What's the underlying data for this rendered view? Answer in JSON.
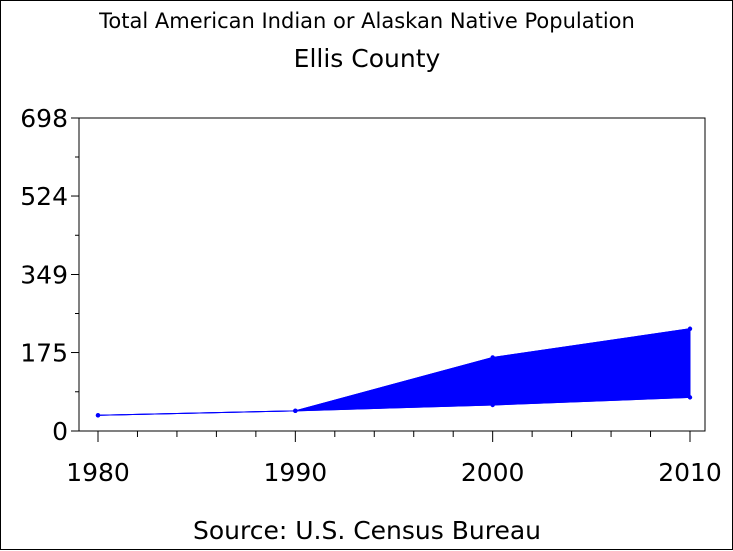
{
  "chart_data": {
    "type": "area",
    "title": "Total American Indian or Alaskan Native Population",
    "subtitle": "Ellis County",
    "source": "Source: U.S. Census Bureau",
    "x": [
      1980,
      1990,
      2000,
      2010
    ],
    "xlim": [
      1980,
      2010
    ],
    "ylim": [
      0,
      698
    ],
    "yticks": [
      "0",
      "175",
      "349",
      "524",
      "698"
    ],
    "xticks": [
      "1980",
      "1990",
      "2000",
      "2010"
    ],
    "series": [
      {
        "values": [
          35,
          45,
          164,
          228
        ]
      },
      {
        "values": [
          35,
          45,
          58,
          75
        ]
      }
    ],
    "colors": {
      "fill": "#0000ff",
      "line": "#0000ff",
      "axis": "#000000"
    },
    "grid": false
  }
}
